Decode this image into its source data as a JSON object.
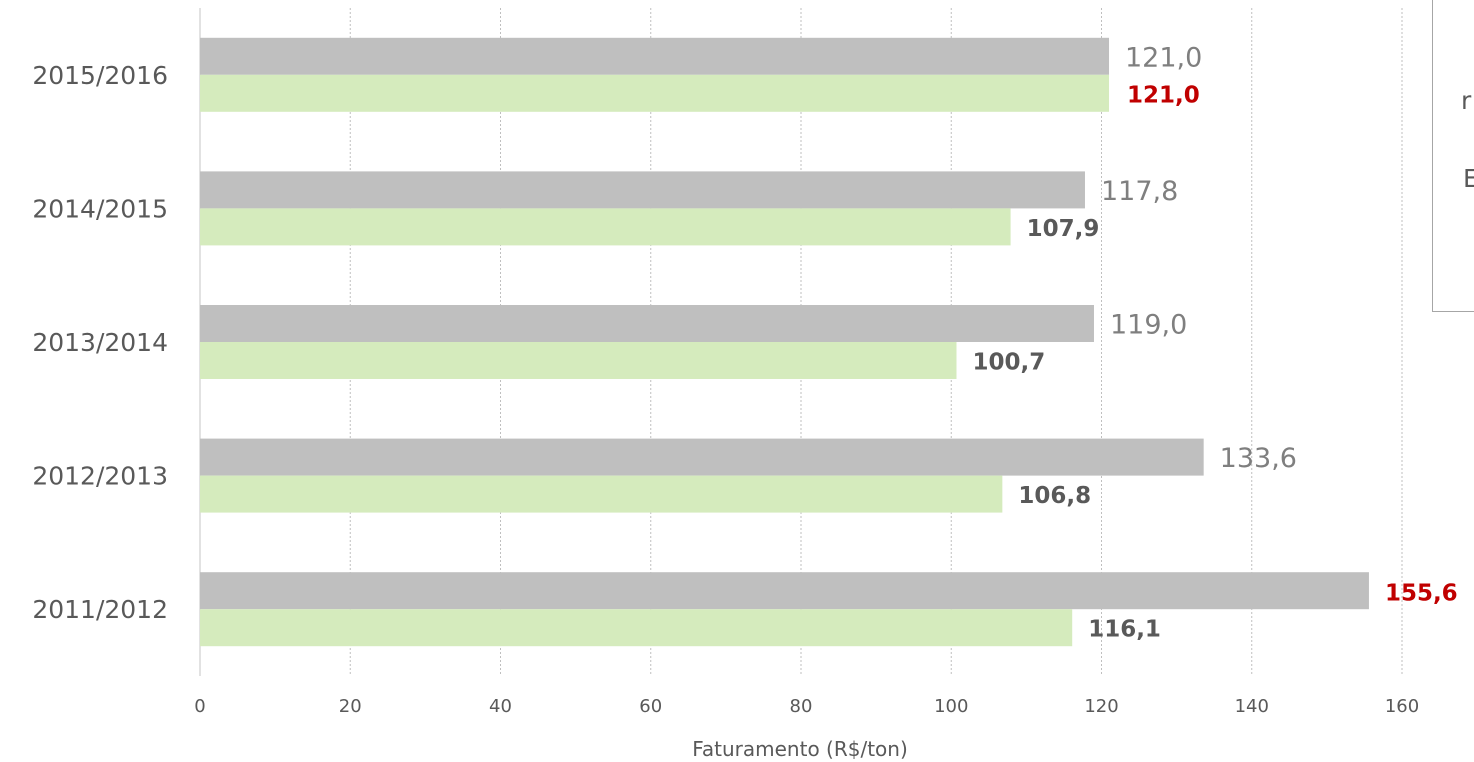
{
  "chart_data": {
    "type": "bar",
    "orientation": "horizontal",
    "categories": [
      "2015/2016",
      "2014/2015",
      "2013/2014",
      "2012/2013",
      "2011/2012"
    ],
    "series": [
      {
        "values": [
          121.0,
          117.8,
          119.0,
          133.6,
          155.6
        ],
        "color": "#bfbfbf"
      },
      {
        "values": [
          121.0,
          107.9,
          100.7,
          106.8,
          116.1
        ],
        "color": "#d5ebbd"
      }
    ],
    "value_labels": {
      "grey": [
        "121,0",
        "117,8",
        "119,0",
        "133,6",
        "155,6"
      ],
      "green": [
        "121,0",
        "107,9",
        "100,7",
        "106,8",
        "116,1"
      ]
    },
    "highlight_color": "#c00000",
    "xlabel": "Faturamento (R$/ton)",
    "xlim": [
      0,
      160
    ],
    "xticks": [
      0,
      20,
      40,
      60,
      80,
      100,
      120,
      140,
      160
    ],
    "xtick_labels": [
      "0",
      "20",
      "40",
      "60",
      "80",
      "100",
      "120",
      "140",
      "160"
    ],
    "grid": "vertical dotted",
    "legend_placement": "top-right (cropped)"
  },
  "legend_fragments": [
    "r",
    "E"
  ]
}
